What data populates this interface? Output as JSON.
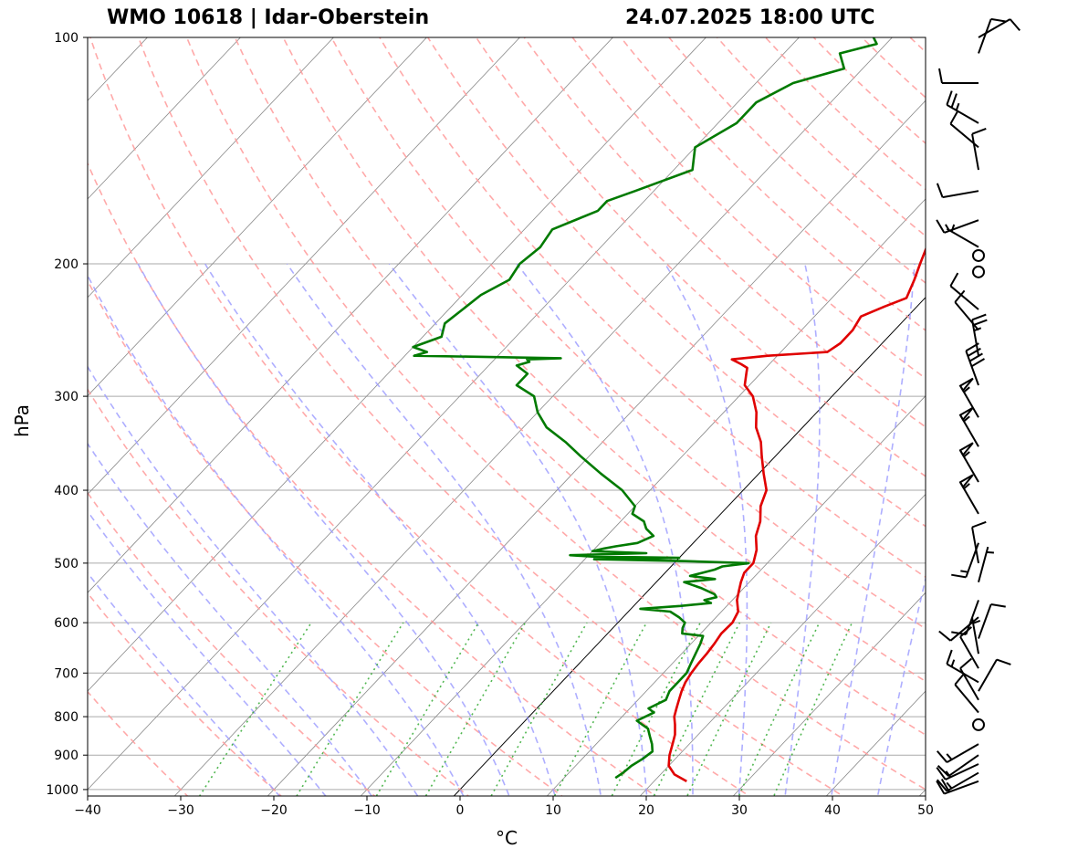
{
  "title_left": "WMO 10618 | Idar-Oberstein",
  "title_right": "24.07.2025 18:00 UTC",
  "chart_data": {
    "type": "skew-t",
    "xlabel": "°C",
    "ylabel": "hPa",
    "xlim": [
      -40,
      50
    ],
    "ylim": [
      1020,
      100
    ],
    "x_ticks": [
      -40,
      -30,
      -20,
      -10,
      0,
      10,
      20,
      30,
      40,
      50
    ],
    "x_tick_labels": [
      "−40",
      "−30",
      "−20",
      "−10",
      "0",
      "10",
      "20",
      "30",
      "40",
      "50"
    ],
    "y_ticks": [
      1000,
      900,
      800,
      700,
      600,
      500,
      400,
      300,
      200,
      100
    ],
    "y_scale": "log",
    "grid": true,
    "colors": {
      "temperature": "#e00000",
      "dewpoint": "#007a00",
      "dry_adiabats": "#ff9a9a",
      "moist_adiabats": "#9a9aff",
      "mixing_ratio": "#33aa33",
      "isotherms": "#888888",
      "grid": "#aaaaaa"
    },
    "series": [
      {
        "key": "temperature",
        "p": [
          975,
          955,
          930,
          900,
          870,
          845,
          820,
          800,
          780,
          760,
          740,
          720,
          700,
          680,
          660,
          640,
          620,
          600,
          580,
          560,
          545,
          530,
          515,
          500,
          490,
          480,
          460,
          440,
          420,
          400,
          380,
          360,
          345,
          330,
          315,
          300,
          290,
          280,
          275,
          272,
          268,
          265,
          262,
          255,
          245,
          235,
          228,
          222,
          210,
          200,
          190,
          180,
          170,
          160,
          150,
          140,
          130,
          120,
          110,
          103,
          100
        ],
        "values": [
          23.5,
          21.5,
          20.0,
          19.0,
          18.2,
          17.5,
          16.5,
          15.6,
          15.0,
          14.4,
          13.8,
          13.3,
          13.0,
          12.8,
          12.7,
          12.5,
          12.2,
          12.3,
          11.8,
          10.5,
          9.8,
          9.1,
          8.5,
          8.5,
          8.0,
          7.5,
          6.0,
          5.0,
          3.5,
          2.5,
          0.5,
          -1.5,
          -3.0,
          -5.0,
          -6.5,
          -8.5,
          -10.5,
          -11.5,
          -12.0,
          -13.0,
          -14.5,
          -11.0,
          -5.0,
          -4.5,
          -4.5,
          -5.0,
          -3.5,
          -2.0,
          -3.0,
          -4.0,
          -5.0,
          -6.0,
          -7.5,
          -8.5,
          -10.0,
          -12.0,
          -13.0,
          -13.5,
          -14.5,
          -15.0,
          -15.5
        ]
      },
      {
        "key": "dewpoint",
        "p": [
          965,
          950,
          930,
          910,
          890,
          870,
          850,
          830,
          820,
          810,
          800,
          790,
          780,
          760,
          740,
          720,
          700,
          680,
          660,
          640,
          625,
          620,
          610,
          600,
          590,
          580,
          575,
          570,
          565,
          560,
          555,
          550,
          540,
          530,
          525,
          520,
          515,
          510,
          505,
          500,
          497,
          494,
          492,
          490,
          488,
          485,
          482,
          478,
          475,
          470,
          460,
          450,
          440,
          430,
          420,
          400,
          380,
          360,
          345,
          330,
          315,
          300,
          290,
          280,
          273,
          270,
          268,
          267,
          265,
          262,
          258,
          250,
          240,
          230,
          220,
          210,
          200,
          190,
          180,
          170,
          165,
          160,
          150,
          140,
          130,
          122,
          115,
          110,
          105,
          102,
          100
        ],
        "values": [
          15.5,
          15.8,
          16.0,
          16.5,
          16.8,
          16.0,
          15.0,
          14.0,
          13.0,
          12.0,
          12.5,
          13.0,
          12.0,
          13.0,
          12.5,
          12.5,
          12.5,
          12.0,
          11.5,
          11.0,
          10.5,
          8.0,
          7.5,
          7.2,
          6.0,
          4.5,
          1.0,
          5.0,
          8.0,
          7.0,
          8.0,
          7.5,
          5.5,
          3.0,
          6.0,
          3.0,
          4.0,
          5.0,
          5.5,
          8.0,
          1.0,
          -9.0,
          0.0,
          -9.5,
          -12.0,
          -4.0,
          -10.0,
          -9.0,
          -8.0,
          -6.0,
          -5.0,
          -6.5,
          -7.5,
          -9.5,
          -10.0,
          -13.0,
          -17.0,
          -21.0,
          -24.0,
          -27.5,
          -30.0,
          -32.0,
          -35.0,
          -35.0,
          -37.0,
          -36.0,
          -36.5,
          -33.0,
          -49.0,
          -48.0,
          -50.0,
          -48.0,
          -49.0,
          -48.5,
          -48.0,
          -46.5,
          -47.0,
          -46.5,
          -47.0,
          -44.0,
          -44.0,
          -42.0,
          -38.0,
          -40.0,
          -38.0,
          -38.0,
          -36.0,
          -32.0,
          -34.0,
          -31.0,
          -32.0
        ]
      }
    ],
    "wind_barbs": [
      {
        "p": 975,
        "dir": 250,
        "speed": 20
      },
      {
        "p": 950,
        "dir": 240,
        "speed": 15
      },
      {
        "p": 925,
        "dir": 245,
        "speed": 15
      },
      {
        "p": 900,
        "dir": 235,
        "speed": 10
      },
      {
        "p": 870,
        "dir": 240,
        "speed": 15
      },
      {
        "p": 820,
        "dir": 0,
        "speed": 0
      },
      {
        "p": 790,
        "dir": 320,
        "speed": 10
      },
      {
        "p": 760,
        "dir": 330,
        "speed": 10
      },
      {
        "p": 740,
        "dir": 30,
        "speed": 10
      },
      {
        "p": 720,
        "dir": 300,
        "speed": 15
      },
      {
        "p": 690,
        "dir": 330,
        "speed": 10
      },
      {
        "p": 660,
        "dir": 350,
        "speed": 5
      },
      {
        "p": 630,
        "dir": 20,
        "speed": 10
      },
      {
        "p": 590,
        "dir": 230,
        "speed": 10
      },
      {
        "p": 560,
        "dir": 200,
        "speed": 10
      },
      {
        "p": 530,
        "dir": 15,
        "speed": 5
      },
      {
        "p": 500,
        "dir": 350,
        "speed": 10
      },
      {
        "p": 470,
        "dir": 200,
        "speed": 15
      },
      {
        "p": 430,
        "dir": 330,
        "speed": 55
      },
      {
        "p": 390,
        "dir": 330,
        "speed": 55
      },
      {
        "p": 350,
        "dir": 330,
        "speed": 55
      },
      {
        "p": 320,
        "dir": 330,
        "speed": 55
      },
      {
        "p": 290,
        "dir": 340,
        "speed": 40
      },
      {
        "p": 265,
        "dir": 350,
        "speed": 25
      },
      {
        "p": 245,
        "dir": 320,
        "speed": 10
      },
      {
        "p": 230,
        "dir": 310,
        "speed": 10
      },
      {
        "p": 205,
        "dir": 0,
        "speed": 0
      },
      {
        "p": 195,
        "dir": 0,
        "speed": 0
      },
      {
        "p": 190,
        "dir": 300,
        "speed": 5
      },
      {
        "p": 175,
        "dir": 250,
        "speed": 15
      },
      {
        "p": 160,
        "dir": 260,
        "speed": 10
      },
      {
        "p": 150,
        "dir": 350,
        "speed": 10
      },
      {
        "p": 140,
        "dir": 310,
        "speed": 10
      },
      {
        "p": 130,
        "dir": 300,
        "speed": 25
      },
      {
        "p": 115,
        "dir": 270,
        "speed": 10
      },
      {
        "p": 105,
        "dir": 20,
        "speed": 10
      },
      {
        "p": 100,
        "dir": 60,
        "speed": 10
      }
    ]
  }
}
